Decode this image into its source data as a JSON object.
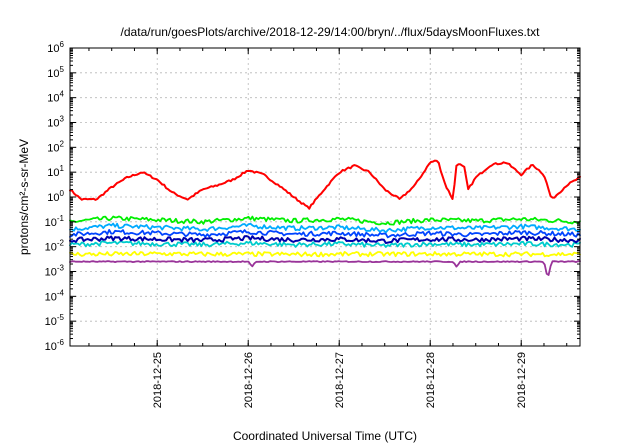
{
  "chart_data": {
    "type": "line",
    "title": "/data/run/goesPlots/archive/2018-12-29/14:00/bryn/../flux/5daysMoonFluxes.txt",
    "xlabel": "Coordinated Universal Time (UTC)",
    "ylabel": "protons/cm²-s-sr-MeV",
    "y_scale": "log",
    "ylim": [
      1e-06,
      1000000.0
    ],
    "xlim_days": [
      "2018-12-24 01:00",
      "2018-12-29 15:30"
    ],
    "x_ticks": [
      "2018-12-25",
      "2018-12-26",
      "2018-12-27",
      "2018-12-28",
      "2018-12-29"
    ],
    "y_ticks": [
      {
        "value": 1e-06,
        "base": "10",
        "exp": "-6"
      },
      {
        "value": 1e-05,
        "base": "10",
        "exp": "-5"
      },
      {
        "value": 0.0001,
        "base": "10",
        "exp": "-4"
      },
      {
        "value": 0.001,
        "base": "10",
        "exp": "-3"
      },
      {
        "value": 0.01,
        "base": "10",
        "exp": "-2"
      },
      {
        "value": 0.1,
        "base": "10",
        "exp": "-1"
      },
      {
        "value": 1,
        "base": "10",
        "exp": "0"
      },
      {
        "value": 10,
        "base": "10",
        "exp": "1"
      },
      {
        "value": 100,
        "base": "10",
        "exp": "2"
      },
      {
        "value": 1000,
        "base": "10",
        "exp": "3"
      },
      {
        "value": 10000,
        "base": "10",
        "exp": "4"
      },
      {
        "value": 100000,
        "base": "10",
        "exp": "5"
      },
      {
        "value": 1000000,
        "base": "10",
        "exp": "6"
      }
    ],
    "grid": true,
    "series": [
      {
        "color": "#ff0000",
        "x": [
          "2018-12-24 01:00",
          "2018-12-24 04:00",
          "2018-12-24 08:00",
          "2018-12-24 12:00",
          "2018-12-24 16:00",
          "2018-12-24 20:00",
          "2018-12-25 00:00",
          "2018-12-25 04:00",
          "2018-12-25 08:00",
          "2018-12-25 12:00",
          "2018-12-25 16:00",
          "2018-12-25 20:00",
          "2018-12-26 00:00",
          "2018-12-26 04:00",
          "2018-12-26 08:00",
          "2018-12-26 12:00",
          "2018-12-26 16:00",
          "2018-12-26 20:00",
          "2018-12-27 00:00",
          "2018-12-27 04:00",
          "2018-12-27 08:00",
          "2018-12-27 12:00",
          "2018-12-27 16:00",
          "2018-12-27 20:00",
          "2018-12-28 00:00",
          "2018-12-28 02:00",
          "2018-12-28 04:00",
          "2018-12-28 06:00",
          "2018-12-28 07:00",
          "2018-12-28 09:00",
          "2018-12-28 10:00",
          "2018-12-28 12:00",
          "2018-12-28 16:00",
          "2018-12-28 20:00",
          "2018-12-29 00:00",
          "2018-12-29 03:00",
          "2018-12-29 06:00",
          "2018-12-29 08:00",
          "2018-12-29 10:00",
          "2018-12-29 12:00",
          "2018-12-29 15:30"
        ],
        "y": [
          2.0,
          0.8,
          0.8,
          2.5,
          6,
          10,
          5,
          1.5,
          0.8,
          2,
          3,
          5,
          12,
          8,
          3,
          1,
          0.35,
          2,
          10,
          18,
          10,
          2,
          0.8,
          3,
          25,
          30,
          3,
          0.8,
          25,
          15,
          2,
          6,
          20,
          25,
          8,
          20,
          8,
          0.8,
          1.5,
          3,
          6
        ]
      },
      {
        "color": "#00ee00",
        "x": [
          "2018-12-24 01:00",
          "2018-12-24 12:00",
          "2018-12-25 00:00",
          "2018-12-25 12:00",
          "2018-12-26 00:00",
          "2018-12-26 12:00",
          "2018-12-27 00:00",
          "2018-12-27 12:00",
          "2018-12-28 00:00",
          "2018-12-28 12:00",
          "2018-12-29 00:00",
          "2018-12-29 15:30"
        ],
        "y": [
          0.1,
          0.14,
          0.12,
          0.1,
          0.14,
          0.11,
          0.13,
          0.09,
          0.12,
          0.11,
          0.13,
          0.1
        ]
      },
      {
        "color": "#00aaff",
        "x": [
          "2018-12-24 01:00",
          "2018-12-24 12:00",
          "2018-12-25 00:00",
          "2018-12-25 12:00",
          "2018-12-26 00:00",
          "2018-12-26 12:00",
          "2018-12-27 00:00",
          "2018-12-27 12:00",
          "2018-12-28 00:00",
          "2018-12-28 12:00",
          "2018-12-29 00:00",
          "2018-12-29 15:30"
        ],
        "y": [
          0.05,
          0.07,
          0.06,
          0.05,
          0.07,
          0.055,
          0.06,
          0.045,
          0.06,
          0.055,
          0.065,
          0.05
        ]
      },
      {
        "color": "#0044ff",
        "x": [
          "2018-12-24 01:00",
          "2018-12-24 12:00",
          "2018-12-25 00:00",
          "2018-12-25 12:00",
          "2018-12-26 00:00",
          "2018-12-26 12:00",
          "2018-12-27 00:00",
          "2018-12-27 12:00",
          "2018-12-28 00:00",
          "2018-12-28 12:00",
          "2018-12-29 00:00",
          "2018-12-29 15:30"
        ],
        "y": [
          0.03,
          0.04,
          0.035,
          0.03,
          0.04,
          0.032,
          0.035,
          0.028,
          0.035,
          0.03,
          0.038,
          0.03
        ]
      },
      {
        "color": "#00cccc",
        "x": [
          "2018-12-24 01:00",
          "2018-12-24 12:00",
          "2018-12-25 00:00",
          "2018-12-25 12:00",
          "2018-12-26 00:00",
          "2018-12-26 12:00",
          "2018-12-27 00:00",
          "2018-12-27 12:00",
          "2018-12-28 00:00",
          "2018-12-28 12:00",
          "2018-12-29 00:00",
          "2018-12-29 15:30"
        ],
        "y": [
          0.012,
          0.014,
          0.013,
          0.012,
          0.014,
          0.012,
          0.013,
          0.011,
          0.013,
          0.012,
          0.013,
          0.012
        ]
      },
      {
        "color": "#0000aa",
        "x": [
          "2018-12-24 01:00",
          "2018-12-24 12:00",
          "2018-12-25 00:00",
          "2018-12-25 12:00",
          "2018-12-26 00:00",
          "2018-12-26 12:00",
          "2018-12-27 00:00",
          "2018-12-27 12:00",
          "2018-12-28 00:00",
          "2018-12-28 12:00",
          "2018-12-29 00:00",
          "2018-12-29 15:30"
        ],
        "y": [
          0.018,
          0.022,
          0.02,
          0.018,
          0.022,
          0.019,
          0.02,
          0.017,
          0.02,
          0.019,
          0.021,
          0.018
        ]
      },
      {
        "color": "#ffff00",
        "x": [
          "2018-12-24 01:00",
          "2018-12-24 12:00",
          "2018-12-25 00:00",
          "2018-12-25 12:00",
          "2018-12-26 00:00",
          "2018-12-26 12:00",
          "2018-12-27 00:00",
          "2018-12-27 12:00",
          "2018-12-28 00:00",
          "2018-12-28 12:00",
          "2018-12-29 00:00",
          "2018-12-29 15:30"
        ],
        "y": [
          0.005,
          0.005,
          0.0052,
          0.005,
          0.005,
          0.0049,
          0.005,
          0.005,
          0.0051,
          0.005,
          0.005,
          0.005
        ]
      },
      {
        "color": "#993399",
        "x": [
          "2018-12-24 01:00",
          "2018-12-25 00:00",
          "2018-12-26 00:00",
          "2018-12-26 01:00",
          "2018-12-26 02:00",
          "2018-12-27 00:00",
          "2018-12-28 00:00",
          "2018-12-28 06:00",
          "2018-12-28 07:00",
          "2018-12-28 08:00",
          "2018-12-29 00:00",
          "2018-12-29 06:00",
          "2018-12-29 07:00",
          "2018-12-29 08:00",
          "2018-12-29 15:30"
        ],
        "y": [
          0.0025,
          0.0025,
          0.0025,
          0.0015,
          0.0025,
          0.0025,
          0.0025,
          0.0025,
          0.0015,
          0.0025,
          0.0025,
          0.0025,
          0.0005,
          0.0025,
          0.0025
        ]
      }
    ]
  }
}
